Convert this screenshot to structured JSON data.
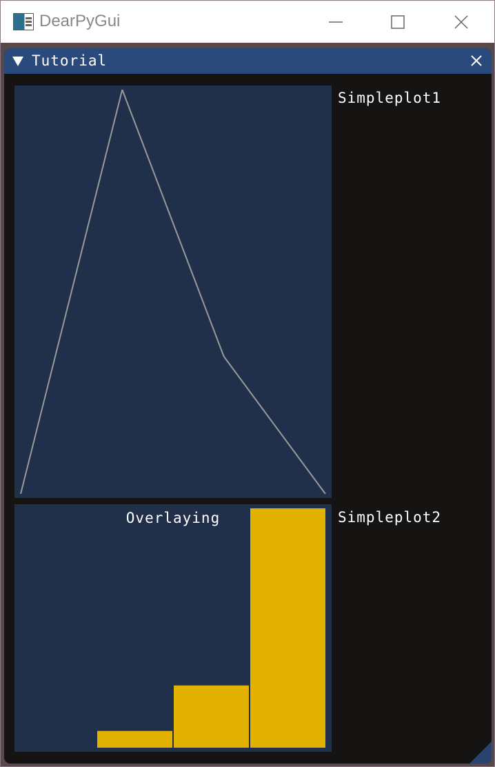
{
  "os_window": {
    "title": "DearPyGui",
    "icon": "app-icon",
    "controls": [
      "minimize-icon",
      "maximize-icon",
      "close-icon"
    ]
  },
  "imgui_window": {
    "title": "Tutorial",
    "collapse_icon": "triangle-down-icon",
    "close_icon": "close-icon"
  },
  "plots": {
    "simpleplot1": {
      "label": "Simpleplot1"
    },
    "simpleplot2": {
      "label": "Simpleplot2",
      "overlay": "Overlaying"
    }
  },
  "colors": {
    "plot_bg": "#20304b",
    "line": "#9a9a9a",
    "bar": "#e3b100",
    "title_bar": "#294a7a",
    "window_bg": "#151412"
  },
  "chart_data": [
    {
      "type": "line",
      "x": [
        0,
        1,
        2,
        3
      ],
      "values": [
        0.0,
        1.0,
        0.34,
        0.0
      ],
      "ylim": [
        0,
        1
      ]
    },
    {
      "type": "bar",
      "values": [
        0.0,
        0.07,
        0.26,
        1.0
      ],
      "ylim": [
        0,
        1
      ]
    }
  ]
}
